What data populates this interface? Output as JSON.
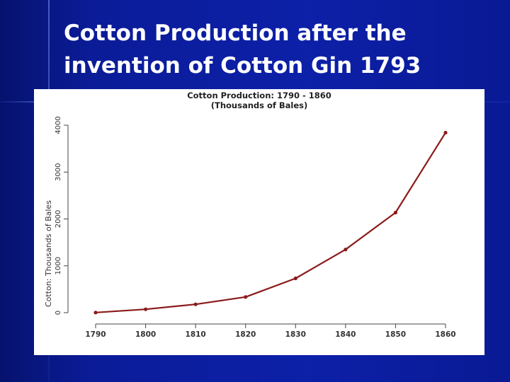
{
  "slide": {
    "title": "Cotton Production after the\ninvention of Cotton Gin 1793"
  },
  "chart_data": {
    "type": "line",
    "title": "Cotton Production: 1790 - 1860",
    "subtitle": "(Thousands of Bales)",
    "xlabel": "",
    "ylabel": "Cotton: Thousands of Bales",
    "x": [
      1790,
      1800,
      1810,
      1820,
      1830,
      1840,
      1850,
      1860
    ],
    "y": [
      3,
      73,
      178,
      335,
      732,
      1348,
      2136,
      3841
    ],
    "xlim": [
      1790,
      1860
    ],
    "ylim": [
      0,
      4000
    ],
    "xticks": [
      "1790",
      "1800",
      "1810",
      "1820",
      "1830",
      "1840",
      "1850",
      "1860"
    ],
    "yticks": [
      "0",
      "1000",
      "2000",
      "3000",
      "4000"
    ],
    "line_color": "#8b1a1a",
    "grid": false
  }
}
